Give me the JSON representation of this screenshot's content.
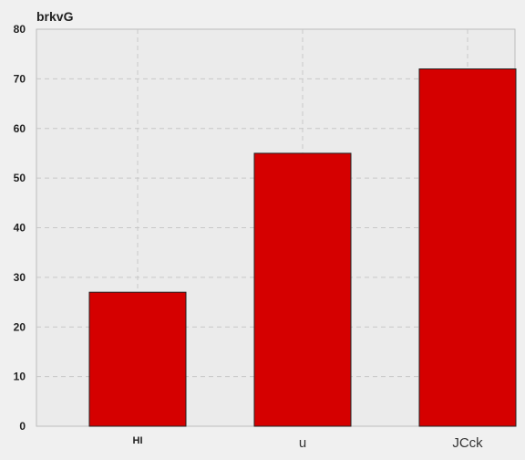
{
  "chart_data": {
    "type": "bar",
    "title": "brkvG",
    "categories": [
      "HI",
      "u",
      "JCck"
    ],
    "values": [
      27,
      55,
      72
    ],
    "xlabel": "",
    "ylabel": "",
    "ylim": [
      0,
      80
    ],
    "yticks": [
      "0",
      "10",
      "20",
      "30",
      "40",
      "50",
      "60",
      "70",
      "80"
    ],
    "grid": true,
    "bar_color": "#d50000",
    "plot_background": "#ebebeb",
    "grid_color": "#c8c8c8"
  }
}
